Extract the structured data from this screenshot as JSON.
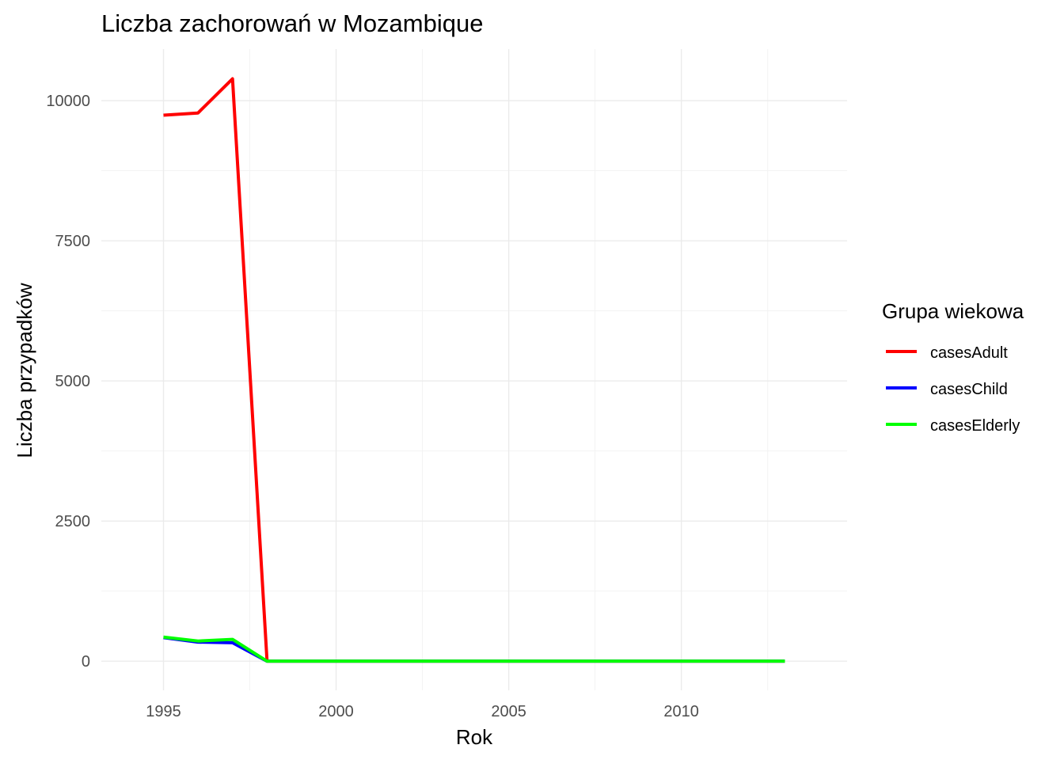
{
  "chart_data": {
    "type": "line",
    "title": "Liczba zachorowań w Mozambique",
    "xlabel": "Rok",
    "ylabel": "Liczba przypadków",
    "x": [
      1995,
      1996,
      1997,
      1998,
      1999,
      2000,
      2001,
      2002,
      2003,
      2004,
      2005,
      2006,
      2007,
      2008,
      2009,
      2010,
      2011,
      2012,
      2013
    ],
    "series": [
      {
        "name": "casesAdult",
        "color": "#ff0000",
        "values": [
          9740,
          9780,
          10390,
          0,
          0,
          0,
          0,
          0,
          0,
          0,
          0,
          0,
          0,
          0,
          0,
          0,
          0,
          0,
          0
        ]
      },
      {
        "name": "casesChild",
        "color": "#0000ff",
        "values": [
          420,
          340,
          330,
          0,
          0,
          0,
          0,
          0,
          0,
          0,
          0,
          0,
          0,
          0,
          0,
          0,
          0,
          0,
          0
        ]
      },
      {
        "name": "casesElderly",
        "color": "#00ff00",
        "values": [
          430,
          360,
          390,
          0,
          0,
          0,
          0,
          0,
          0,
          0,
          0,
          0,
          0,
          0,
          0,
          0,
          0,
          0,
          0
        ]
      }
    ],
    "xlim": [
      1993.2,
      2014.8
    ],
    "ylim": [
      -520,
      10920
    ],
    "x_ticks": [
      1995,
      2000,
      2005,
      2010
    ],
    "x_tick_labels": [
      "1995",
      "2000",
      "2005",
      "2010"
    ],
    "y_ticks": [
      0,
      2500,
      5000,
      7500,
      10000
    ],
    "y_tick_labels": [
      "0",
      "2500",
      "5000",
      "7500",
      "10000"
    ],
    "grid": true,
    "legend": {
      "title": "Grupa wiekowa",
      "position": "right"
    }
  }
}
